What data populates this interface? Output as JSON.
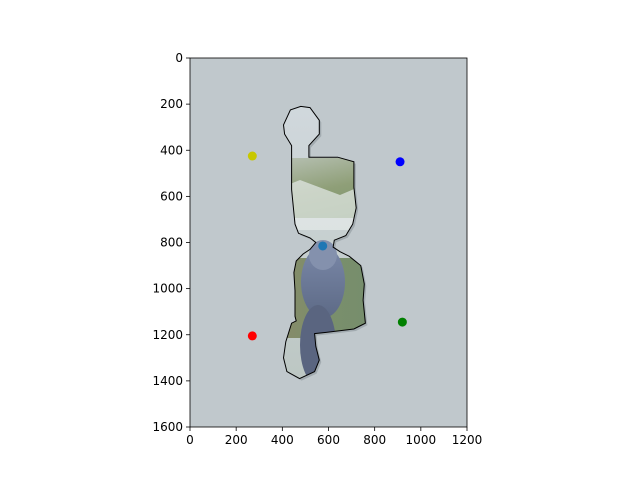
{
  "chart_data": {
    "type": "scatter",
    "title": "",
    "xlabel": "",
    "ylabel": "",
    "xlim": [
      0,
      1200
    ],
    "ylim": [
      1600,
      0
    ],
    "y_inverted": true,
    "grid": false,
    "legend": "none",
    "x_ticks": [
      "0",
      "200",
      "400",
      "600",
      "800",
      "1000",
      "1200"
    ],
    "y_ticks": [
      "0",
      "200",
      "400",
      "600",
      "800",
      "1000",
      "1200",
      "1400",
      "1600"
    ],
    "background_image": "photo of a jigsaw puzzle piece on a light gray surface, the piece printed with a mountain landscape and a blue bird",
    "contour_color": "#000000",
    "contour": [
      [
        440,
        430
      ],
      [
        440,
        570
      ],
      [
        455,
        720
      ],
      [
        470,
        760
      ],
      [
        520,
        780
      ],
      [
        545,
        800
      ],
      [
        520,
        830
      ],
      [
        490,
        850
      ],
      [
        460,
        880
      ],
      [
        450,
        930
      ],
      [
        455,
        1010
      ],
      [
        455,
        1120
      ],
      [
        460,
        1140
      ],
      [
        440,
        1150
      ],
      [
        415,
        1230
      ],
      [
        405,
        1300
      ],
      [
        420,
        1360
      ],
      [
        475,
        1390
      ],
      [
        540,
        1360
      ],
      [
        560,
        1310
      ],
      [
        545,
        1250
      ],
      [
        540,
        1195
      ],
      [
        590,
        1190
      ],
      [
        710,
        1175
      ],
      [
        740,
        1160
      ],
      [
        760,
        1150
      ],
      [
        750,
        1050
      ],
      [
        755,
        980
      ],
      [
        740,
        900
      ],
      [
        690,
        860
      ],
      [
        650,
        840
      ],
      [
        620,
        820
      ],
      [
        625,
        790
      ],
      [
        675,
        770
      ],
      [
        705,
        720
      ],
      [
        720,
        650
      ],
      [
        710,
        560
      ],
      [
        710,
        450
      ],
      [
        640,
        430
      ],
      [
        545,
        430
      ],
      [
        515,
        430
      ],
      [
        515,
        380
      ],
      [
        560,
        330
      ],
      [
        560,
        270
      ],
      [
        520,
        215
      ],
      [
        480,
        210
      ],
      [
        435,
        225
      ],
      [
        405,
        290
      ],
      [
        410,
        330
      ],
      [
        440,
        380
      ],
      [
        440,
        430
      ]
    ],
    "series": [
      {
        "color": "#c8c800",
        "x": [
          270
        ],
        "y": [
          425
        ]
      },
      {
        "color": "#0000ff",
        "x": [
          910
        ],
        "y": [
          450
        ]
      },
      {
        "color": "#1f77b4",
        "x": [
          575
        ],
        "y": [
          815
        ]
      },
      {
        "color": "#ff0000",
        "x": [
          270
        ],
        "y": [
          1205
        ]
      },
      {
        "color": "#008000",
        "x": [
          920
        ],
        "y": [
          1145
        ]
      }
    ]
  }
}
